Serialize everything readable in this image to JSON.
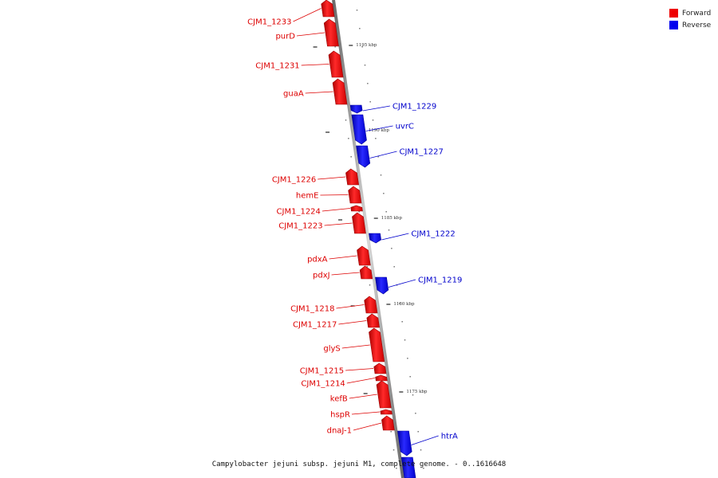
{
  "legend": {
    "forward_label": "Forward",
    "reverse_label": "Reverse",
    "forward_color": "#ee0000",
    "reverse_color": "#0000ee"
  },
  "caption": "Campylobacter jejuni subsp. jejuni M1, complete genome. - 0..1616648",
  "scale_ticks": [
    "1195 kbp",
    "1190 kbp",
    "1185 kbp",
    "1180 kbp",
    "1175 kbp"
  ],
  "genes": [
    {
      "label": "CJM1_1233",
      "strand": "forward"
    },
    {
      "label": "purD",
      "strand": "forward"
    },
    {
      "label": "CJM1_1231",
      "strand": "forward"
    },
    {
      "label": "guaA",
      "strand": "forward"
    },
    {
      "label": "CJM1_1229",
      "strand": "reverse"
    },
    {
      "label": "uvrC",
      "strand": "reverse"
    },
    {
      "label": "CJM1_1227",
      "strand": "reverse"
    },
    {
      "label": "CJM1_1226",
      "strand": "forward"
    },
    {
      "label": "hemE",
      "strand": "forward"
    },
    {
      "label": "CJM1_1224",
      "strand": "forward"
    },
    {
      "label": "CJM1_1223",
      "strand": "forward"
    },
    {
      "label": "CJM1_1222",
      "strand": "reverse"
    },
    {
      "label": "pdxA",
      "strand": "forward"
    },
    {
      "label": "pdxJ",
      "strand": "forward"
    },
    {
      "label": "CJM1_1219",
      "strand": "reverse"
    },
    {
      "label": "CJM1_1218",
      "strand": "forward"
    },
    {
      "label": "CJM1_1217",
      "strand": "forward"
    },
    {
      "label": "glyS",
      "strand": "forward"
    },
    {
      "label": "CJM1_1215",
      "strand": "forward"
    },
    {
      "label": "CJM1_1214",
      "strand": "forward"
    },
    {
      "label": "kefB",
      "strand": "forward"
    },
    {
      "label": "hspR",
      "strand": "forward"
    },
    {
      "label": "dnaJ-1",
      "strand": "forward"
    },
    {
      "label": "htrA",
      "strand": "reverse"
    }
  ]
}
